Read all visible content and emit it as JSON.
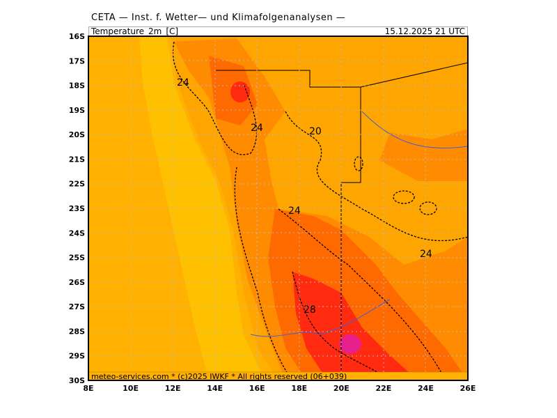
{
  "header": {
    "title": "CETA — Inst. f. Wetter— und Klimafolgenanalysen —"
  },
  "subheader": {
    "variable": "Temperature_2m_[C]",
    "valid_time": "15.12.2025  21 UTC"
  },
  "footer": {
    "credit": "meteo-services.com * (c)2025 IWKF * All rights reserved (06+039)"
  },
  "axes": {
    "lat_labels": [
      "16S",
      "17S",
      "18S",
      "19S",
      "20S",
      "21S",
      "22S",
      "23S",
      "24S",
      "25S",
      "26S",
      "27S",
      "28S",
      "29S",
      "30S"
    ],
    "lon_labels": [
      "8E",
      "10E",
      "12E",
      "14E",
      "16E",
      "18E",
      "20E",
      "22E",
      "24E",
      "26E"
    ]
  },
  "contour_labels": [
    "24",
    "24",
    "20",
    "24",
    "24",
    "28"
  ],
  "colors": {
    "ocean_cool": "#FFC000",
    "base": "#FFA500",
    "warm": "#FF8C00",
    "hot": "#FF6A00",
    "very_hot": "#FF2A10",
    "extreme": "#E8208C",
    "borders": "#000000",
    "rivers": "#4060D0"
  }
}
